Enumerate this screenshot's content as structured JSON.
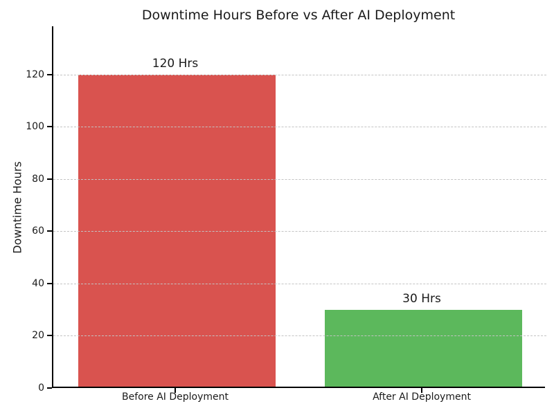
{
  "figure": {
    "background": "#ffffff"
  },
  "chart_data": {
    "type": "bar",
    "title": "Downtime Hours Before vs After AI Deployment",
    "xlabel": "",
    "ylabel": "Downtime Hours",
    "categories": [
      "Before AI Deployment",
      "After AI Deployment"
    ],
    "values": [
      120,
      30
    ],
    "bar_labels": [
      "120 Hrs",
      "30 Hrs"
    ],
    "bar_colors": [
      "#d9534f",
      "#5cb85c"
    ],
    "yticks": [
      0,
      20,
      40,
      60,
      80,
      100,
      120
    ],
    "ylim": [
      0,
      138.5
    ],
    "grid": "horizontal dashed",
    "grid_color": "#c3c3c3",
    "legend": "none",
    "text_color": "#1a1a1a"
  }
}
